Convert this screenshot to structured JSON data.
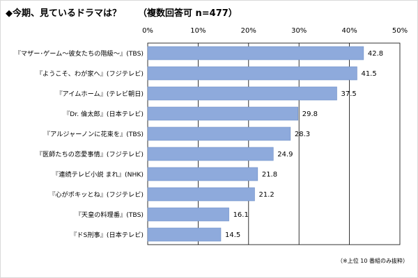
{
  "title": "◆今期、見ているドラマは？",
  "question_note": "（複数回答可  n=477）",
  "footnote": "（※上位 10 番組のみ抜粋）",
  "chart_data": {
    "type": "bar",
    "orientation": "horizontal",
    "categories": [
      "『マザー･ゲーム～彼女たちの階級～』(TBS)",
      "『ようこそ、わが家へ』(フジテレビ)",
      "『アイムホーム』(テレビ朝日)",
      "『Dr. 倫太郎』(日本テレビ)",
      "『アルジャーノンに花束を』(TBS)",
      "『医師たちの恋愛事情』(フジテレビ)",
      "『連続テレビ小説 まれ』(NHK)",
      "『心がポキッとね』(フジテレビ)",
      "『天皇の料理番』(TBS)",
      "『ドS刑事』(日本テレビ)"
    ],
    "values": [
      42.8,
      41.5,
      37.5,
      29.8,
      28.3,
      24.9,
      21.8,
      21.2,
      16.1,
      14.5
    ],
    "xlim": [
      0,
      50
    ],
    "xticks": [
      "0%",
      "10%",
      "20%",
      "30%",
      "40%",
      "50%"
    ],
    "xtick_values": [
      0,
      10,
      20,
      30,
      40,
      50
    ],
    "grid": true,
    "bar_color": "#8eaadc",
    "bar_border_color": "#6f8fc7"
  }
}
